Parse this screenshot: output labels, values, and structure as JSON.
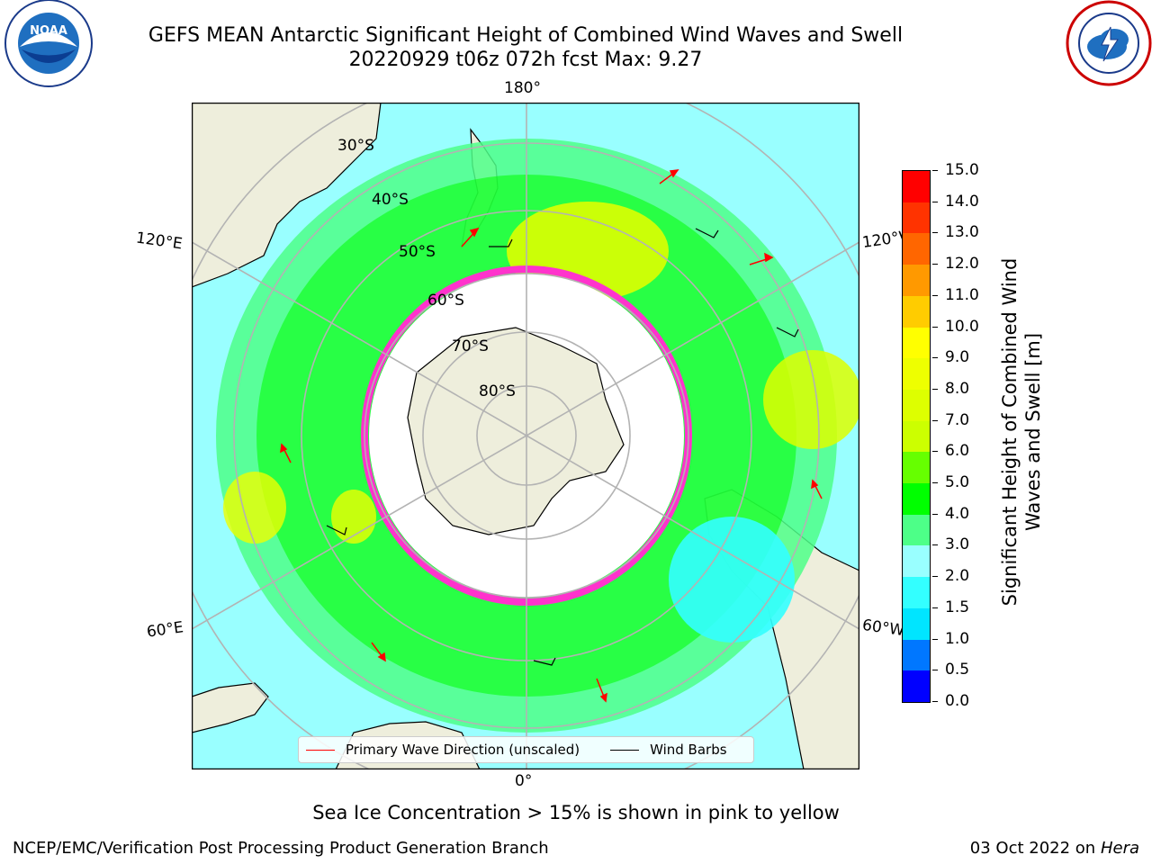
{
  "title": {
    "line1": "GEFS MEAN Antarctic Significant Height of Combined Wind Waves and Swell",
    "line2": "20220929 t06z 072h fcst   Max: 9.27"
  },
  "logos": {
    "left": "noaa-logo",
    "left_text": "NOAA",
    "right": "national-weather-service-logo"
  },
  "map": {
    "projection": "south-polar-stereographic",
    "lon_labels": {
      "top": "180°",
      "bottom": "0°",
      "upper_left": "120°E",
      "lower_left": "60°E",
      "upper_right": "120°W",
      "lower_right": "60°W"
    },
    "lat_labels": [
      "30°S",
      "40°S",
      "50°S",
      "60°S",
      "70°S",
      "80°S"
    ],
    "colors": {
      "ocean_base": "#99ffff",
      "land": "#eeeedc",
      "ice_edge": "#ff33cc",
      "grid": "#b3b3b3"
    }
  },
  "legend": {
    "entries": [
      {
        "label": "Primary Wave Direction (unscaled)",
        "color": "#ff0000"
      },
      {
        "label": "Wind Barbs",
        "color": "#000000"
      }
    ]
  },
  "colorbar": {
    "title": "Significant Height of Combined Wind Waves and Swell [m]",
    "ticks": [
      "0.0",
      "0.5",
      "1.0",
      "1.5",
      "2.0",
      "3.0",
      "4.0",
      "5.0",
      "6.0",
      "7.0",
      "8.0",
      "9.0",
      "10.0",
      "11.0",
      "12.0",
      "13.0",
      "14.0",
      "15.0"
    ],
    "colors": [
      "#0000ff",
      "#0077ff",
      "#00e5ff",
      "#33ffff",
      "#99ffff",
      "#4dff88",
      "#00ff00",
      "#66ff00",
      "#ccff00",
      "#ddff00",
      "#eeff00",
      "#ffff00",
      "#ffcc00",
      "#ff9900",
      "#ff6600",
      "#ff3300",
      "#ff0000"
    ]
  },
  "subtitle": "Sea Ice Concentration > 15% is shown in pink to yellow",
  "footer": {
    "left": "NCEP/EMC/Verification Post Processing Product Generation Branch",
    "date": "03 Oct 2022 on",
    "machine": "Hera"
  }
}
